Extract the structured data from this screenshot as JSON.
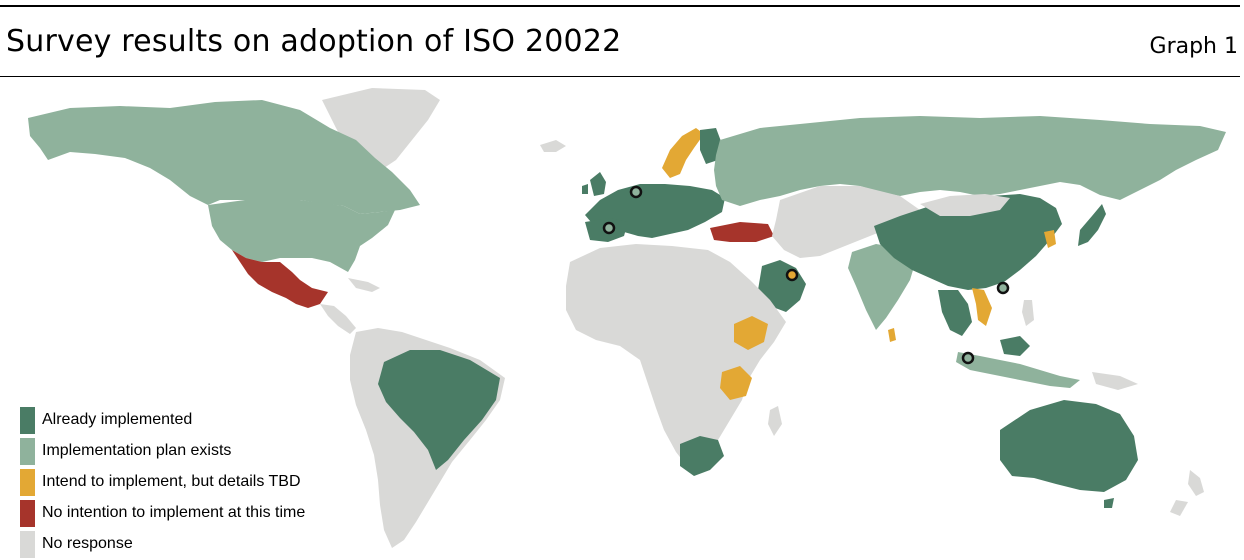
{
  "header": {
    "title": "Survey results on adoption of ISO 20022",
    "graph_label": "Graph 1"
  },
  "colors": {
    "already_implemented": "#4a7c65",
    "implementation_plan_exists": "#8fb29c",
    "intend_to_implement": "#e3a834",
    "no_intention": "#a6342b",
    "no_response": "#d9d9d7"
  },
  "legend": {
    "items": [
      {
        "label": "Already implemented",
        "color": "#4a7c65"
      },
      {
        "label": "Implementation plan exists",
        "color": "#8fb29c"
      },
      {
        "label": "Intend to implement, but details TBD",
        "color": "#e3a834"
      },
      {
        "label": "No intention to implement at this time",
        "color": "#a6342b"
      },
      {
        "label": "No response",
        "color": "#d9d9d7"
      }
    ]
  }
}
